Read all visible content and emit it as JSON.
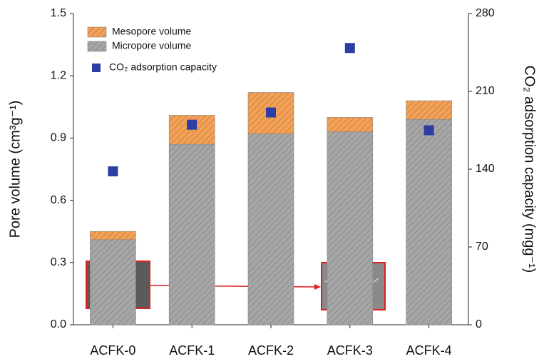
{
  "chart_data": {
    "type": "bar",
    "stacked": true,
    "ylabel": "Pore volume (cm³g⁻¹)",
    "y2label": "CO₂ adsorption capacity (mgg⁻¹)",
    "categories": [
      "ACFK-0",
      "ACFK-1",
      "ACFK-2",
      "ACFK-3",
      "ACFK-4"
    ],
    "series": [
      {
        "name": "Micropore volume",
        "type": "bar",
        "color": "#a6a6a6",
        "values": [
          0.41,
          0.87,
          0.92,
          0.93,
          0.99
        ]
      },
      {
        "name": "Mesopore volume",
        "type": "bar",
        "color": "#f5a053",
        "values": [
          0.04,
          0.14,
          0.2,
          0.07,
          0.09
        ]
      },
      {
        "name": "CO₂ adsorption capacity",
        "type": "scatter",
        "axis": "y2",
        "color": "#2a3ea6",
        "values": [
          138,
          180,
          191,
          249,
          175
        ]
      }
    ],
    "ylim": [
      0,
      1.5
    ],
    "yticks": [
      {
        "value": 0,
        "label": "0.0"
      },
      0.3,
      0.6,
      0.9,
      1.2,
      1.5
    ],
    "y2lim": [
      0,
      280
    ],
    "y2ticks": [
      0,
      70,
      140,
      210,
      280
    ]
  }
}
